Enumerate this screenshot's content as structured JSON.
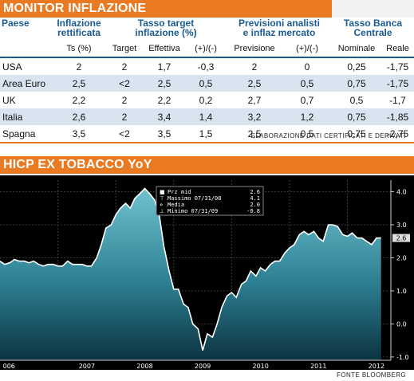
{
  "table": {
    "title": "MONITOR INFLAZIONE",
    "groups": {
      "paese": "Paese",
      "inflazione_l1": "Inflazione",
      "inflazione_l2": "rettificata",
      "target_l1": "Tasso target",
      "target_l2": "inflazione (%)",
      "previsioni_l1": "Previsioni analisti",
      "previsioni_l2": "e inflaz mercato",
      "banca_l1": "Tasso Banca",
      "banca_l2": "Centrale"
    },
    "subheaders": [
      "Ts (%)",
      "Target",
      "Effettiva",
      "(+)/(-)",
      "Previsione",
      "(+)/(-)",
      "Nominale",
      "Reale"
    ],
    "rows": [
      {
        "country": "USA",
        "ts": "2",
        "target": "2",
        "effettiva": "1,7",
        "diff1": "-0,3",
        "previsione": "2",
        "diff2": "0",
        "nominale": "0,25",
        "reale": "-1,75"
      },
      {
        "country": "Area Euro",
        "ts": "2,5",
        "target": "<2",
        "effettiva": "2,5",
        "diff1": "0,5",
        "previsione": "2,5",
        "diff2": "0,5",
        "nominale": "0,75",
        "reale": "-1,75"
      },
      {
        "country": "UK",
        "ts": "2,2",
        "target": "2",
        "effettiva": "2,2",
        "diff1": "0,2",
        "previsione": "2,7",
        "diff2": "0,7",
        "nominale": "0,5",
        "reale": "-1,7"
      },
      {
        "country": "Italia",
        "ts": "2,6",
        "target": "2",
        "effettiva": "3,4",
        "diff1": "1,4",
        "previsione": "3,2",
        "diff2": "1,2",
        "nominale": "0,75",
        "reale": "-1,85"
      },
      {
        "country": "Spagna",
        "ts": "3,5",
        "target": "<2",
        "effettiva": "3,5",
        "diff1": "1,5",
        "previsione": "2,5",
        "diff2": "0,5",
        "nominale": "0,75",
        "reale": "-2,75"
      }
    ],
    "source": "ELABORAZIONE DATI CERTIFICATI E DERIVATI"
  },
  "chart_section": {
    "title": "HICP EX TOBACCO YoY",
    "source": "FONTE BLOOMBERG"
  },
  "colors": {
    "banner": "#ea7a21",
    "header_text": "#1a5b93",
    "row_alt": "#d8e4ef",
    "fill_top": "#6fc3cf",
    "fill_bottom": "#0c3340"
  },
  "chart_data": {
    "type": "area",
    "title": "",
    "xlabel": "",
    "ylabel": "",
    "x_ticks": [
      "006",
      "2007",
      "2008",
      "2009",
      "2010",
      "2011",
      "2012"
    ],
    "y_ticks": [
      "4.0",
      "3.0",
      "2.0",
      "1.0",
      "0.0",
      "-1.0"
    ],
    "ylim": [
      -1.1,
      4.35
    ],
    "xlim": [
      2006.0,
      2012.75
    ],
    "last_value_label": "2.6",
    "grid": true,
    "legend": {
      "placement": "top-center",
      "entries": [
        {
          "label": "Prz mid",
          "value": "2.6"
        },
        {
          "label": "Massimo 07/31/08",
          "value": "4.1"
        },
        {
          "label": "Media",
          "value": "2.0"
        },
        {
          "label": "Minimo 07/31/09",
          "value": "-0.8"
        }
      ]
    },
    "series": [
      {
        "x": [
          2006.0,
          2006.08,
          2006.17,
          2006.25,
          2006.33,
          2006.42,
          2006.5,
          2006.58,
          2006.67,
          2006.75,
          2006.83,
          2006.92,
          2007.0,
          2007.08,
          2007.17,
          2007.25,
          2007.33,
          2007.42,
          2007.5,
          2007.58,
          2007.67,
          2007.75,
          2007.83,
          2007.92,
          2008.0,
          2008.08,
          2008.17,
          2008.25,
          2008.33,
          2008.42,
          2008.5,
          2008.58,
          2008.67,
          2008.75,
          2008.83,
          2008.92,
          2009.0,
          2009.08,
          2009.17,
          2009.25,
          2009.33,
          2009.42,
          2009.5,
          2009.58,
          2009.67,
          2009.75,
          2009.83,
          2009.92,
          2010.0,
          2010.08,
          2010.17,
          2010.25,
          2010.33,
          2010.42,
          2010.5,
          2010.58,
          2010.67,
          2010.75,
          2010.83,
          2010.92,
          2011.0,
          2011.08,
          2011.17,
          2011.25,
          2011.33,
          2011.42,
          2011.5,
          2011.58,
          2011.67,
          2011.75,
          2011.83,
          2011.92,
          2012.0,
          2012.08,
          2012.17,
          2012.25,
          2012.33,
          2012.42,
          2012.5,
          2012.58
        ],
        "y": [
          1.9,
          1.8,
          1.85,
          1.95,
          1.9,
          1.9,
          1.85,
          1.9,
          1.8,
          1.75,
          1.8,
          1.8,
          1.75,
          1.75,
          1.9,
          1.8,
          1.8,
          1.8,
          1.75,
          1.75,
          2.0,
          2.4,
          2.9,
          3.0,
          3.3,
          3.5,
          3.65,
          3.5,
          3.8,
          3.95,
          4.1,
          3.95,
          3.75,
          3.3,
          2.35,
          1.6,
          1.05,
          1.05,
          0.6,
          0.5,
          0.0,
          -0.15,
          -0.8,
          -0.3,
          -0.4,
          0.0,
          0.5,
          0.85,
          0.95,
          0.8,
          1.2,
          1.3,
          1.6,
          1.45,
          1.7,
          1.6,
          1.8,
          1.9,
          1.9,
          2.15,
          2.3,
          2.4,
          2.7,
          2.8,
          2.7,
          2.8,
          2.6,
          2.5,
          3.0,
          3.0,
          2.95,
          2.7,
          2.65,
          2.75,
          2.6,
          2.6,
          2.5,
          2.4,
          2.6,
          2.6
        ]
      }
    ]
  }
}
